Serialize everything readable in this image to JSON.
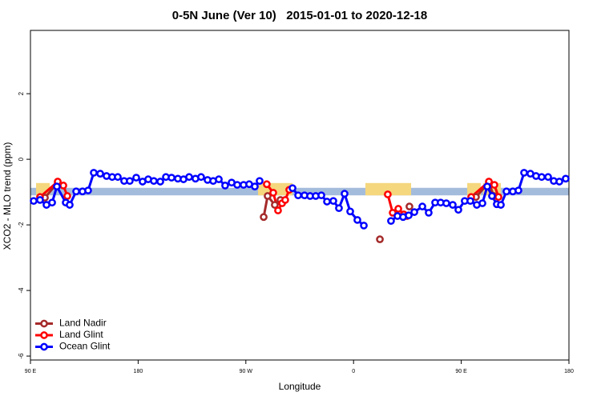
{
  "chart_data": {
    "type": "line",
    "title": "0-5N June (Ver 10)   2015-01-01 to 2020-12-18",
    "x_label": "Longitude",
    "y_label": "XCO2 - MLO trend (ppm)",
    "xlim": [
      90,
      540
    ],
    "ylim": [
      -6.12,
      3.93
    ],
    "xticks": [
      {
        "value": 90,
        "label": "90 E"
      },
      {
        "value": 180,
        "label": "180"
      },
      {
        "value": 270,
        "label": "90 W"
      },
      {
        "value": 360,
        "label": "0"
      },
      {
        "value": 450,
        "label": "90 E"
      },
      {
        "value": 540,
        "label": "180"
      }
    ],
    "yticks": [
      -6,
      -4,
      -2,
      0,
      2
    ],
    "band": [
      -1.1,
      -0.87
    ],
    "band_color": "#a4bcdc",
    "land_spans": [
      [
        94.7,
        106.1
      ],
      [
        280.2,
        309.0
      ],
      [
        369.9,
        408.1
      ],
      [
        455.0,
        466.3
      ],
      [
        468.3,
        483.1
      ]
    ],
    "land_color": "#f5d77e",
    "legend": "bottom-left",
    "series": [
      {
        "name": "Land Nadir",
        "color": "#a52a2a",
        "x": [
          102.1,
          112.8,
          200,
          284.9,
          288.2,
          294.2,
          298.9,
          340,
          382.0,
          395,
          406.7,
          430,
          462.3,
          473.1,
          477.1
        ],
        "values": [
          -1.17,
          -0.71,
          null,
          -1.76,
          -1.12,
          -1.39,
          -1.24,
          null,
          -2.44,
          null,
          -1.44,
          null,
          -1.15,
          -0.71,
          -1.12
        ]
      },
      {
        "name": "Land Glint",
        "color": "#ff0000",
        "x": [
          98.0,
          112.8,
          117.5,
          120.8,
          200,
          287.5,
          292.9,
          296.9,
          300.3,
          302.9,
          306.3,
          350,
          388.6,
          392.7,
          397.4,
          402.0,
          404.7,
          430,
          458.3,
          473.1,
          477.7,
          481.1
        ],
        "values": [
          -1.15,
          -0.68,
          -0.8,
          -1.12,
          null,
          -0.76,
          -1.02,
          -1.56,
          -1.34,
          -1.24,
          -0.93,
          null,
          -1.07,
          -1.63,
          -1.51,
          -1.68,
          -1.73,
          null,
          -1.15,
          -0.68,
          -0.78,
          -1.15
        ]
      },
      {
        "name": "Ocean Glint",
        "color": "#0000ff",
        "x": [
          92.7,
          98.0,
          103.4,
          108.1,
          112.1,
          119.5,
          122.8,
          128.2,
          133.5,
          138.2,
          142.9,
          148.3,
          153.6,
          158.3,
          163.0,
          168.3,
          173.0,
          178.4,
          183.7,
          188.4,
          193.1,
          198.5,
          203.2,
          207.9,
          213.2,
          217.9,
          222.6,
          227.9,
          232.6,
          238.0,
          242.7,
          247.4,
          252.7,
          258.1,
          262.8,
          268.1,
          272.8,
          277.5,
          281.5,
          300,
          309.0,
          313.7,
          319.0,
          323.7,
          328.4,
          333.1,
          337.8,
          343.1,
          347.8,
          352.5,
          357.2,
          363.2,
          368.6,
          380,
          391.3,
          396.7,
          401.4,
          406.1,
          410.8,
          417.5,
          422.8,
          428.2,
          432.8,
          437.5,
          442.9,
          447.6,
          452.9,
          457.6,
          463.0,
          467.7,
          471.7,
          475.7,
          479.7,
          483.1,
          487.8,
          493.1,
          497.8,
          502.5,
          507.8,
          512.5,
          517.2,
          522.6,
          527.3,
          532.0,
          537.3
        ],
        "values": [
          -1.27,
          -1.24,
          -1.39,
          -1.32,
          -0.83,
          -1.32,
          -1.39,
          -0.98,
          -0.98,
          -0.95,
          -0.41,
          -0.44,
          -0.51,
          -0.54,
          -0.54,
          -0.66,
          -0.66,
          -0.56,
          -0.68,
          -0.61,
          -0.66,
          -0.68,
          -0.54,
          -0.56,
          -0.59,
          -0.61,
          -0.54,
          -0.59,
          -0.54,
          -0.63,
          -0.66,
          -0.61,
          -0.8,
          -0.71,
          -0.78,
          -0.78,
          -0.76,
          -0.83,
          -0.66,
          null,
          -0.88,
          -1.1,
          -1.1,
          -1.12,
          -1.12,
          -1.1,
          -1.29,
          -1.27,
          -1.49,
          -1.05,
          -1.59,
          -1.85,
          -2.02,
          null,
          -1.88,
          -1.73,
          -1.76,
          -1.71,
          -1.61,
          -1.44,
          -1.63,
          -1.32,
          -1.32,
          -1.34,
          -1.39,
          -1.54,
          -1.27,
          -1.27,
          -1.39,
          -1.34,
          -0.83,
          -1.12,
          -1.37,
          -1.39,
          -0.98,
          -0.98,
          -0.95,
          -0.41,
          -0.44,
          -0.51,
          -0.54,
          -0.54,
          -0.66,
          -0.68,
          -0.59
        ]
      }
    ]
  }
}
